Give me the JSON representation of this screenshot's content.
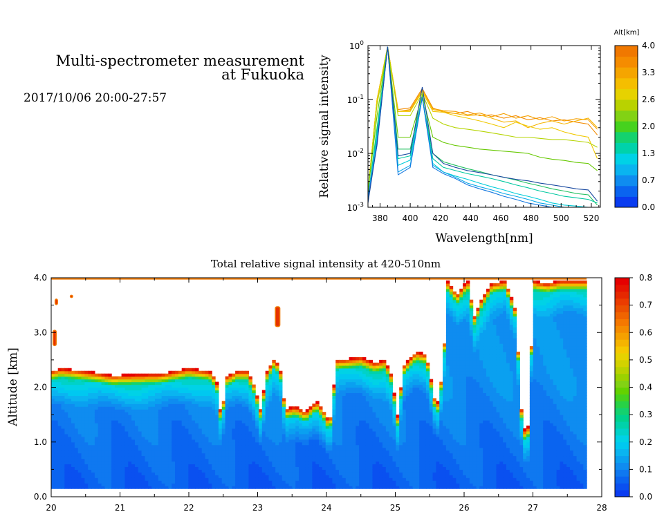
{
  "header": {
    "title_line1": "Multi-spectrometer measurement",
    "title_line2": "at Fukuoka",
    "subtitle": "2017/10/06 20:00-27:57"
  },
  "chart_data": [
    {
      "type": "line",
      "xlabel": "Wavelength[nm]",
      "ylabel": "Relative signal intensity",
      "xlim": [
        372,
        526
      ],
      "ylim": [
        0.001,
        1
      ],
      "yscale": "log",
      "xticks": [
        "380",
        "400",
        "420",
        "440",
        "460",
        "480",
        "500",
        "520"
      ],
      "yticks": [
        {
          "base": "10",
          "exp": "-3"
        },
        {
          "base": "10",
          "exp": "-2"
        },
        {
          "base": "10",
          "exp": "-1"
        },
        {
          "base": "10",
          "exp": "0"
        }
      ],
      "x": [
        372,
        378,
        385,
        392,
        400,
        408,
        415,
        422,
        430,
        438,
        446,
        454,
        462,
        470,
        478,
        486,
        494,
        502,
        510,
        518,
        524
      ],
      "series": [
        {
          "alt": 4.0,
          "color": "#f28a00",
          "values": [
            0.002,
            0.1,
            0.95,
            0.065,
            0.07,
            0.16,
            0.07,
            0.058,
            0.055,
            0.06,
            0.05,
            0.052,
            0.045,
            0.05,
            0.042,
            0.046,
            0.04,
            0.042,
            0.038,
            0.035,
            0.022
          ]
        },
        {
          "alt": 3.7,
          "color": "#f5a000",
          "values": [
            0.002,
            0.1,
            0.95,
            0.06,
            0.065,
            0.15,
            0.068,
            0.062,
            0.06,
            0.052,
            0.056,
            0.048,
            0.055,
            0.045,
            0.05,
            0.042,
            0.048,
            0.04,
            0.044,
            0.042,
            0.028
          ]
        },
        {
          "alt": 3.3,
          "color": "#f7b400",
          "values": [
            0.002,
            0.1,
            0.95,
            0.06,
            0.062,
            0.15,
            0.065,
            0.06,
            0.055,
            0.05,
            0.052,
            0.045,
            0.038,
            0.04,
            0.03,
            0.036,
            0.04,
            0.035,
            0.04,
            0.045,
            0.03
          ]
        },
        {
          "alt": 3.0,
          "color": "#f0c800",
          "values": [
            0.002,
            0.1,
            0.95,
            0.06,
            0.06,
            0.14,
            0.06,
            0.058,
            0.05,
            0.045,
            0.04,
            0.035,
            0.03,
            0.038,
            0.032,
            0.028,
            0.03,
            0.025,
            0.022,
            0.02,
            0.008
          ]
        },
        {
          "alt": 2.6,
          "color": "#b5d400",
          "values": [
            0.002,
            0.08,
            0.95,
            0.05,
            0.05,
            0.13,
            0.045,
            0.035,
            0.03,
            0.028,
            0.026,
            0.024,
            0.022,
            0.02,
            0.02,
            0.019,
            0.018,
            0.018,
            0.017,
            0.016,
            0.013
          ]
        },
        {
          "alt": 2.3,
          "color": "#66c800",
          "values": [
            0.002,
            0.05,
            0.95,
            0.02,
            0.02,
            0.12,
            0.02,
            0.016,
            0.014,
            0.013,
            0.012,
            0.0115,
            0.011,
            0.0105,
            0.01,
            0.0085,
            0.0078,
            0.0074,
            0.0068,
            0.0065,
            0.0048
          ]
        },
        {
          "alt": 2.0,
          "color": "#22c060",
          "values": [
            0.0015,
            0.03,
            0.95,
            0.012,
            0.012,
            0.11,
            0.01,
            0.007,
            0.006,
            0.0052,
            0.0046,
            0.004,
            0.0036,
            0.0032,
            0.0028,
            0.0025,
            0.0022,
            0.002,
            0.0018,
            0.0017,
            0.0011
          ]
        },
        {
          "alt": 1.7,
          "color": "#00c8a0",
          "values": [
            0.0015,
            0.025,
            0.95,
            0.008,
            0.009,
            0.11,
            0.008,
            0.0055,
            0.0048,
            0.0042,
            0.0038,
            0.0034,
            0.003,
            0.0026,
            0.0023,
            0.002,
            0.0018,
            0.0016,
            0.0015,
            0.0014,
            0.0012
          ]
        },
        {
          "alt": 1.3,
          "color": "#00ccd8",
          "values": [
            0.0015,
            0.02,
            0.95,
            0.006,
            0.0075,
            0.11,
            0.0065,
            0.0045,
            0.0038,
            0.0033,
            0.0028,
            0.0024,
            0.0021,
            0.0018,
            0.0016,
            0.0014,
            0.0012,
            0.0011,
            0.00105,
            0.001,
            0.001
          ]
        },
        {
          "alt": 1.0,
          "color": "#0aa8e8",
          "values": [
            0.0015,
            0.018,
            0.95,
            0.0045,
            0.006,
            0.11,
            0.006,
            0.0045,
            0.0036,
            0.0028,
            0.0024,
            0.0021,
            0.0018,
            0.0016,
            0.0014,
            0.0012,
            0.0011,
            0.001,
            0.001,
            0.001,
            0.001
          ]
        },
        {
          "alt": 0.7,
          "color": "#1478e0",
          "values": [
            0.0015,
            0.014,
            0.95,
            0.004,
            0.0055,
            0.11,
            0.0055,
            0.0042,
            0.0034,
            0.0026,
            0.0022,
            0.0019,
            0.0016,
            0.0014,
            0.0012,
            0.0011,
            0.001,
            0.001,
            0.001,
            0.001,
            0.001
          ]
        },
        {
          "alt": 0.3,
          "color": "#1a4aa0",
          "values": [
            0.0012,
            0.015,
            0.95,
            0.009,
            0.01,
            0.17,
            0.01,
            0.0065,
            0.0055,
            0.0048,
            0.0044,
            0.004,
            0.0036,
            0.0033,
            0.0031,
            0.0028,
            0.0026,
            0.0024,
            0.0022,
            0.0021,
            0.0013
          ]
        }
      ],
      "colorbar": {
        "label": "Alt[km]",
        "ticks": [
          "0.0",
          "0.7",
          "1.3",
          "2.0",
          "2.6",
          "3.3",
          "4.0"
        ],
        "colors": [
          "#0a3cf0",
          "#0a64f0",
          "#0f8cf0",
          "#0ab4f0",
          "#00d2e6",
          "#00d2aa",
          "#14d26e",
          "#46d21e",
          "#82d214",
          "#b9d200",
          "#e6d200",
          "#f5be00",
          "#f5a500",
          "#f58c00",
          "#f07800"
        ]
      }
    },
    {
      "type": "heatmap",
      "title": "Total relative signal intensity at 420-510nm",
      "ylabel": "Altitude [km]",
      "xlim": [
        20,
        28
      ],
      "ylim": [
        0,
        4
      ],
      "xticks": [
        "20",
        "21",
        "22",
        "23",
        "24",
        "25",
        "26",
        "27",
        "28"
      ],
      "yticks": [
        "0.0",
        "1.0",
        "2.0",
        "3.0",
        "4.0"
      ],
      "grid_resolution": [
        160,
        80
      ],
      "base_height_km": 0.15,
      "cloud_base_profile": [
        [
          20.0,
          2.3
        ],
        [
          20.15,
          2.35
        ],
        [
          20.6,
          2.28
        ],
        [
          20.9,
          2.22
        ],
        [
          21.6,
          2.25
        ],
        [
          22.0,
          2.35
        ],
        [
          22.3,
          2.3
        ],
        [
          22.4,
          2.15
        ],
        [
          22.47,
          1.45
        ],
        [
          22.55,
          2.2
        ],
        [
          22.7,
          2.3
        ],
        [
          22.85,
          2.3
        ],
        [
          22.95,
          2.05
        ],
        [
          23.05,
          1.55
        ],
        [
          23.12,
          2.25
        ],
        [
          23.25,
          2.55
        ],
        [
          23.33,
          2.3
        ],
        [
          23.4,
          1.6
        ],
        [
          23.55,
          1.65
        ],
        [
          23.7,
          1.55
        ],
        [
          23.85,
          1.75
        ],
        [
          23.95,
          1.6
        ],
        [
          24.05,
          1.35
        ],
        [
          24.15,
          2.5
        ],
        [
          24.5,
          2.55
        ],
        [
          24.7,
          2.45
        ],
        [
          24.85,
          2.5
        ],
        [
          24.95,
          2.2
        ],
        [
          25.03,
          1.45
        ],
        [
          25.12,
          2.4
        ],
        [
          25.3,
          2.65
        ],
        [
          25.45,
          2.6
        ],
        [
          25.6,
          1.6
        ],
        [
          25.7,
          2.4
        ],
        [
          25.75,
          3.95
        ],
        [
          25.9,
          3.7
        ],
        [
          26.05,
          3.95
        ],
        [
          26.15,
          3.3
        ],
        [
          26.25,
          3.6
        ],
        [
          26.4,
          3.9
        ],
        [
          26.6,
          3.95
        ],
        [
          26.75,
          3.4
        ],
        [
          26.85,
          1.2
        ],
        [
          26.95,
          1.3
        ],
        [
          27.0,
          3.95
        ],
        [
          27.2,
          3.9
        ],
        [
          27.4,
          3.95
        ],
        [
          27.78,
          3.95
        ]
      ],
      "cloud_patches": [
        {
          "x": 20.05,
          "y": 3.5,
          "w": 0.05,
          "h": 0.12
        },
        {
          "x": 20.27,
          "y": 3.63,
          "w": 0.05,
          "h": 0.06
        },
        {
          "x": 23.25,
          "y": 3.1,
          "w": 0.08,
          "h": 0.38
        },
        {
          "x": 20.02,
          "y": 2.75,
          "w": 0.06,
          "h": 0.3
        }
      ],
      "colorbar": {
        "ticks": [
          "0.0",
          "0.1",
          "0.2",
          "0.3",
          "0.4",
          "0.5",
          "0.6",
          "0.7",
          "0.8"
        ],
        "colors": [
          "#0a3cf0",
          "#0a50f0",
          "#0a64f0",
          "#0f78f0",
          "#0f8cf0",
          "#0aa0f0",
          "#0ab4f0",
          "#00c8f0",
          "#00d2e6",
          "#00d2c8",
          "#00d2aa",
          "#00d28c",
          "#14d26e",
          "#28d246",
          "#46d21e",
          "#64d200",
          "#82d214",
          "#9bd200",
          "#b9d200",
          "#d2d200",
          "#e6d200",
          "#f5c800",
          "#f5b400",
          "#f5a000",
          "#f58c00",
          "#f57800",
          "#f06400",
          "#eb5000",
          "#eb3c00",
          "#e62800",
          "#e61400",
          "#e60000"
        ]
      }
    }
  ]
}
